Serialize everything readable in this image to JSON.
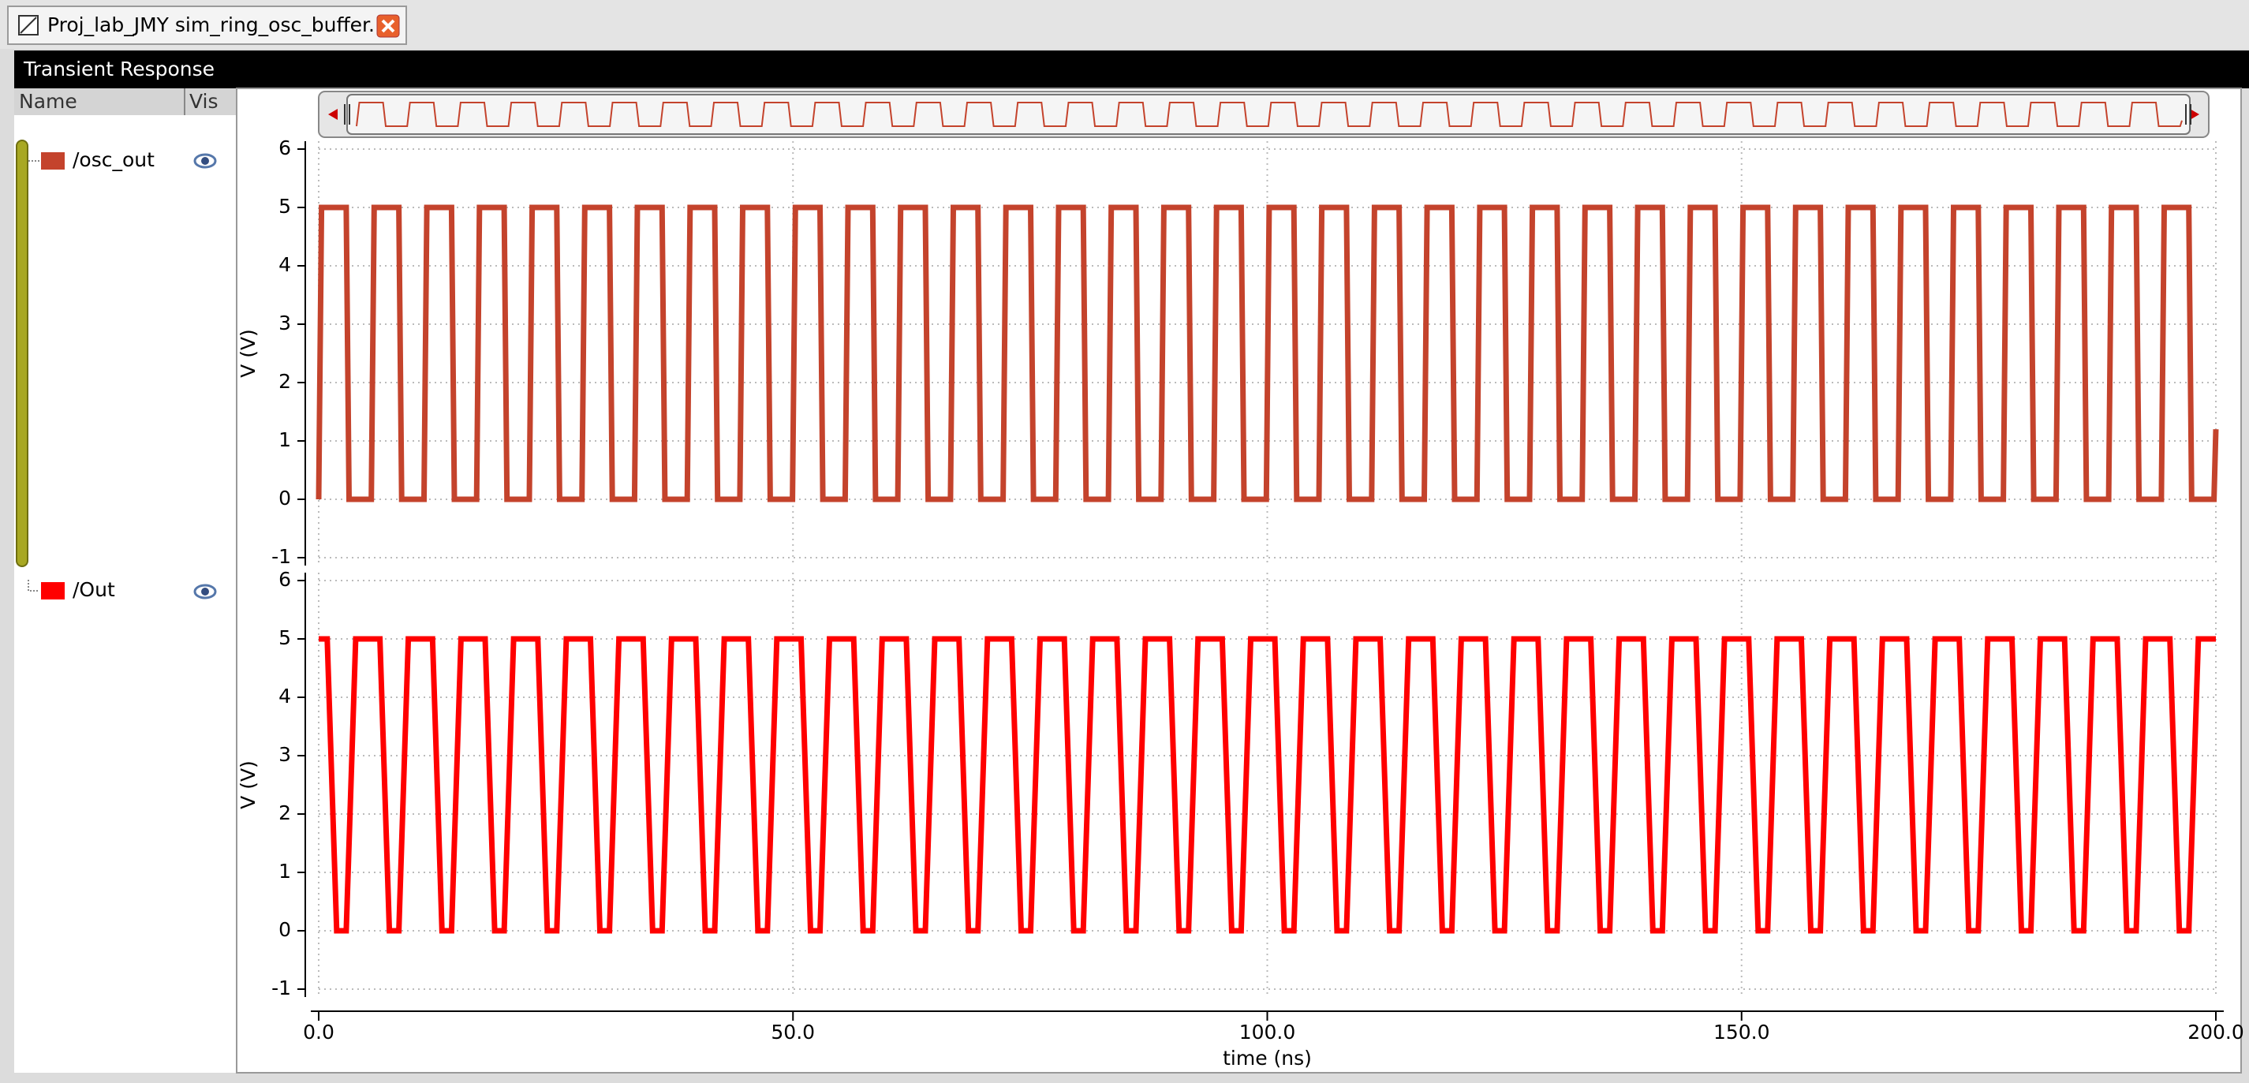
{
  "tab_title": "Proj_lab_JMY sim_ring_osc_buffer...",
  "window_title": "Transient Response",
  "panel_headers": [
    "Name",
    "Vis"
  ],
  "chart_data": [
    {
      "type": "line",
      "ylabel": "V (V)",
      "xlim": [
        0,
        200
      ],
      "ylim": [
        -1,
        6
      ],
      "yticks": [
        -1,
        0,
        1,
        2,
        3,
        4,
        5,
        6
      ],
      "xticks": [
        0,
        50,
        100,
        150,
        200
      ],
      "grid": true,
      "x": [
        0,
        0.3,
        2.9,
        3.2,
        5.55,
        5.85,
        8.45,
        8.75,
        11.1,
        11.4,
        14,
        14.3,
        16.65,
        16.95,
        19.55,
        19.85,
        22.2,
        22.5,
        25.1,
        25.4,
        27.75,
        28.05,
        30.65,
        30.95,
        33.3,
        33.6,
        36.2,
        36.5,
        38.85,
        39.15,
        41.75,
        42.05,
        44.4,
        44.7,
        47.3,
        47.6,
        49.95,
        50.25,
        52.85,
        53.15,
        55.5,
        55.8,
        58.4,
        58.7,
        61.05,
        61.35,
        63.95,
        64.25,
        66.6,
        66.9,
        69.5,
        69.8,
        72.15,
        72.45,
        75.05,
        75.35,
        77.7,
        78,
        80.6,
        80.9,
        83.25,
        83.55,
        86.15,
        86.45,
        88.8,
        89.1,
        91.7,
        92,
        94.35,
        94.65,
        97.25,
        97.55,
        99.9,
        100.2,
        102.8,
        103.1,
        105.45,
        105.75,
        108.35,
        108.65,
        111,
        111.3,
        113.9,
        114.2,
        116.55,
        116.85,
        119.45,
        119.75,
        122.1,
        122.4,
        125,
        125.3,
        127.65,
        127.95,
        130.55,
        130.85,
        133.2,
        133.5,
        136.1,
        136.4,
        138.75,
        139.05,
        141.65,
        141.95,
        144.3,
        144.6,
        147.2,
        147.5,
        149.85,
        150.15,
        152.75,
        153.05,
        155.4,
        155.7,
        158.3,
        158.6,
        160.95,
        161.25,
        163.85,
        164.15,
        166.5,
        166.8,
        169.4,
        169.7,
        172.05,
        172.35,
        174.95,
        175.25,
        177.6,
        177.9,
        180.5,
        180.8,
        183.15,
        183.45,
        186.05,
        186.35,
        188.7,
        189,
        191.6,
        191.9,
        194.25,
        194.55,
        197.15,
        197.45,
        199.8,
        200
      ],
      "series": [
        {
          "name": "/osc_out",
          "color": "#c4432c",
          "values": [
            0,
            5,
            5,
            0,
            0,
            5,
            5,
            0,
            0,
            5,
            5,
            0,
            0,
            5,
            5,
            0,
            0,
            5,
            5,
            0,
            0,
            5,
            5,
            0,
            0,
            5,
            5,
            0,
            0,
            5,
            5,
            0,
            0,
            5,
            5,
            0,
            0,
            5,
            5,
            0,
            0,
            5,
            5,
            0,
            0,
            5,
            5,
            0,
            0,
            5,
            5,
            0,
            0,
            5,
            5,
            0,
            0,
            5,
            5,
            0,
            0,
            5,
            5,
            0,
            0,
            5,
            5,
            0,
            0,
            5,
            5,
            0,
            0,
            5,
            5,
            0,
            0,
            5,
            5,
            0,
            0,
            5,
            5,
            0,
            0,
            5,
            5,
            0,
            0,
            5,
            5,
            0,
            0,
            5,
            5,
            0,
            0,
            5,
            5,
            0,
            0,
            5,
            5,
            0,
            0,
            5,
            5,
            0,
            0,
            5,
            5,
            0,
            0,
            5,
            5,
            0,
            0,
            5,
            5,
            0,
            0,
            5,
            5,
            0,
            0,
            5,
            5,
            0,
            0,
            5,
            5,
            0,
            0,
            5,
            5,
            0,
            0,
            5,
            5,
            0,
            0,
            5,
            5,
            0,
            0,
            1.2
          ]
        }
      ]
    },
    {
      "type": "line",
      "ylabel": "V (V)",
      "xlabel": "time (ns)",
      "xlim": [
        0,
        200
      ],
      "ylim": [
        -1,
        6
      ],
      "yticks": [
        -1,
        0,
        1,
        2,
        3,
        4,
        5,
        6
      ],
      "xticks": [
        {
          "value": 0,
          "label": "0.0"
        },
        {
          "value": 50,
          "label": "50.0"
        },
        {
          "value": 100,
          "label": "100.0"
        },
        {
          "value": 150,
          "label": "150.0"
        },
        {
          "value": 200,
          "label": "200.0"
        }
      ],
      "grid": true,
      "x": [
        0,
        0.9,
        1.9,
        2.9,
        3.9,
        6.45,
        7.45,
        8.45,
        9.45,
        12,
        13,
        14,
        15,
        17.55,
        18.55,
        19.55,
        20.55,
        23.1,
        24.1,
        25.1,
        26.1,
        28.65,
        29.65,
        30.65,
        31.65,
        34.2,
        35.2,
        36.2,
        37.2,
        39.75,
        40.75,
        41.75,
        42.75,
        45.3,
        46.3,
        47.3,
        48.3,
        50.85,
        51.85,
        52.85,
        53.85,
        56.4,
        57.4,
        58.4,
        59.4,
        61.95,
        62.95,
        63.95,
        64.95,
        67.5,
        68.5,
        69.5,
        70.5,
        73.05,
        74.05,
        75.05,
        76.05,
        78.6,
        79.6,
        80.6,
        81.6,
        84.15,
        85.15,
        86.15,
        87.15,
        89.7,
        90.7,
        91.7,
        92.7,
        95.25,
        96.25,
        97.25,
        98.25,
        100.8,
        101.8,
        102.8,
        103.8,
        106.35,
        107.35,
        108.35,
        109.35,
        111.9,
        112.9,
        113.9,
        114.9,
        117.45,
        118.45,
        119.45,
        120.45,
        123,
        124,
        125,
        126,
        128.55,
        129.55,
        130.55,
        131.55,
        134.1,
        135.1,
        136.1,
        137.1,
        139.65,
        140.65,
        141.65,
        142.65,
        145.2,
        146.2,
        147.2,
        148.2,
        150.75,
        151.75,
        152.75,
        153.75,
        156.3,
        157.3,
        158.3,
        159.3,
        161.85,
        162.85,
        163.85,
        164.85,
        167.4,
        168.4,
        169.4,
        170.4,
        172.95,
        173.95,
        174.95,
        175.95,
        178.5,
        179.5,
        180.5,
        181.5,
        184.05,
        185.05,
        186.05,
        187.05,
        189.6,
        190.6,
        191.6,
        192.6,
        195.15,
        196.15,
        197.15,
        198.15,
        200
      ],
      "series": [
        {
          "name": "/Out",
          "color": "#ff0000",
          "values": [
            5,
            5,
            0,
            0,
            5,
            5,
            0,
            0,
            5,
            5,
            0,
            0,
            5,
            5,
            0,
            0,
            5,
            5,
            0,
            0,
            5,
            5,
            0,
            0,
            5,
            5,
            0,
            0,
            5,
            5,
            0,
            0,
            5,
            5,
            0,
            0,
            5,
            5,
            0,
            0,
            5,
            5,
            0,
            0,
            5,
            5,
            0,
            0,
            5,
            5,
            0,
            0,
            5,
            5,
            0,
            0,
            5,
            5,
            0,
            0,
            5,
            5,
            0,
            0,
            5,
            5,
            0,
            0,
            5,
            5,
            0,
            0,
            5,
            5,
            0,
            0,
            5,
            5,
            0,
            0,
            5,
            5,
            0,
            0,
            5,
            5,
            0,
            0,
            5,
            5,
            0,
            0,
            5,
            5,
            0,
            0,
            5,
            5,
            0,
            0,
            5,
            5,
            0,
            0,
            5,
            5,
            0,
            0,
            5,
            5,
            0,
            0,
            5,
            5,
            0,
            0,
            5,
            5,
            0,
            0,
            5,
            5,
            0,
            0,
            5,
            5,
            0,
            0,
            5,
            5,
            0,
            0,
            5,
            5,
            0,
            0,
            5,
            5,
            0,
            0,
            5,
            5,
            0,
            0,
            5,
            5
          ]
        }
      ]
    }
  ]
}
